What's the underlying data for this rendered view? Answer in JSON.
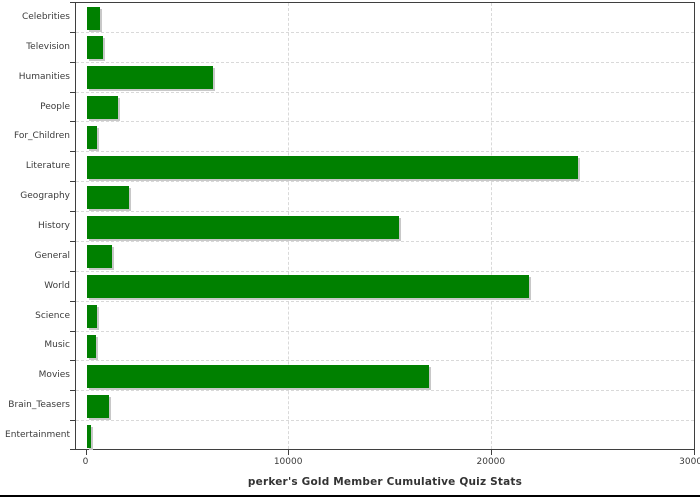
{
  "chart": {
    "title": "perker's Gold Member Cumulative Quiz Stats"
  },
  "chart_data": {
    "type": "bar",
    "orientation": "horizontal",
    "title": "perker's Gold Member Cumulative Quiz Stats",
    "categories": [
      "Celebrities",
      "Television",
      "Humanities",
      "People",
      "For_Children",
      "Literature",
      "Geography",
      "History",
      "General",
      "World",
      "Science",
      "Music",
      "Movies",
      "Brain_Teasers",
      "Entertainment"
    ],
    "values": [
      670,
      810,
      6250,
      1550,
      520,
      24250,
      2100,
      15400,
      1250,
      21850,
      500,
      450,
      16900,
      1100,
      220
    ],
    "xlabel": "",
    "ylabel": "",
    "x_ticks": [
      0,
      10000,
      20000,
      30000
    ],
    "x_tick_labels": [
      "0",
      "10000",
      "20000",
      "30000"
    ],
    "xlim": [
      -500,
      30000
    ],
    "grid": true,
    "legend_visible": false,
    "colors": {
      "bar": "#008000",
      "bar_shadow": "#c8c8c8",
      "axis": "#3f3f3f",
      "grid": "#d9d9d9",
      "text": "#3b3b3b",
      "title_text": "#333333",
      "background": "#ffffff",
      "bottom_rule": "#000000"
    }
  }
}
